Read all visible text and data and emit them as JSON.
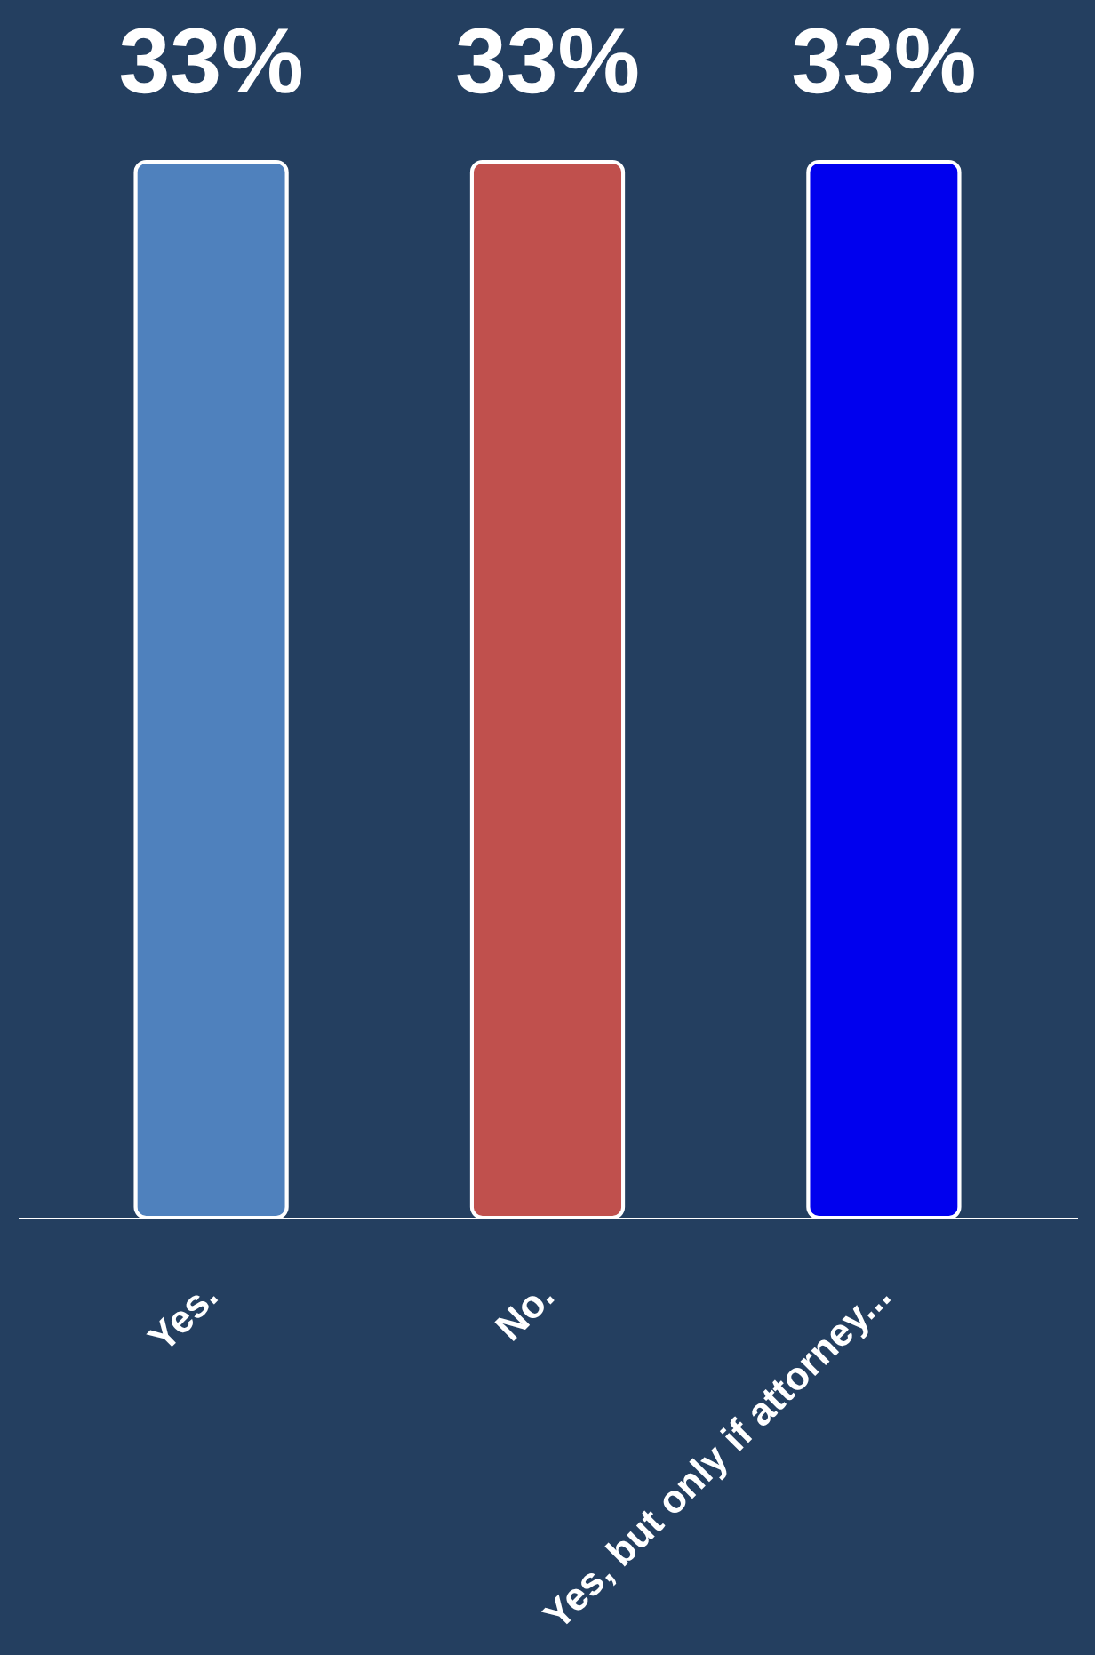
{
  "chart_data": {
    "type": "bar",
    "categories": [
      "Yes.",
      "No.",
      "Yes, but only if attorney..."
    ],
    "values": [
      33,
      33,
      33
    ],
    "colors": [
      "#4f81bd",
      "#c0504d",
      "#0000ee"
    ],
    "value_labels": [
      "33%",
      "33%",
      "33%"
    ]
  }
}
